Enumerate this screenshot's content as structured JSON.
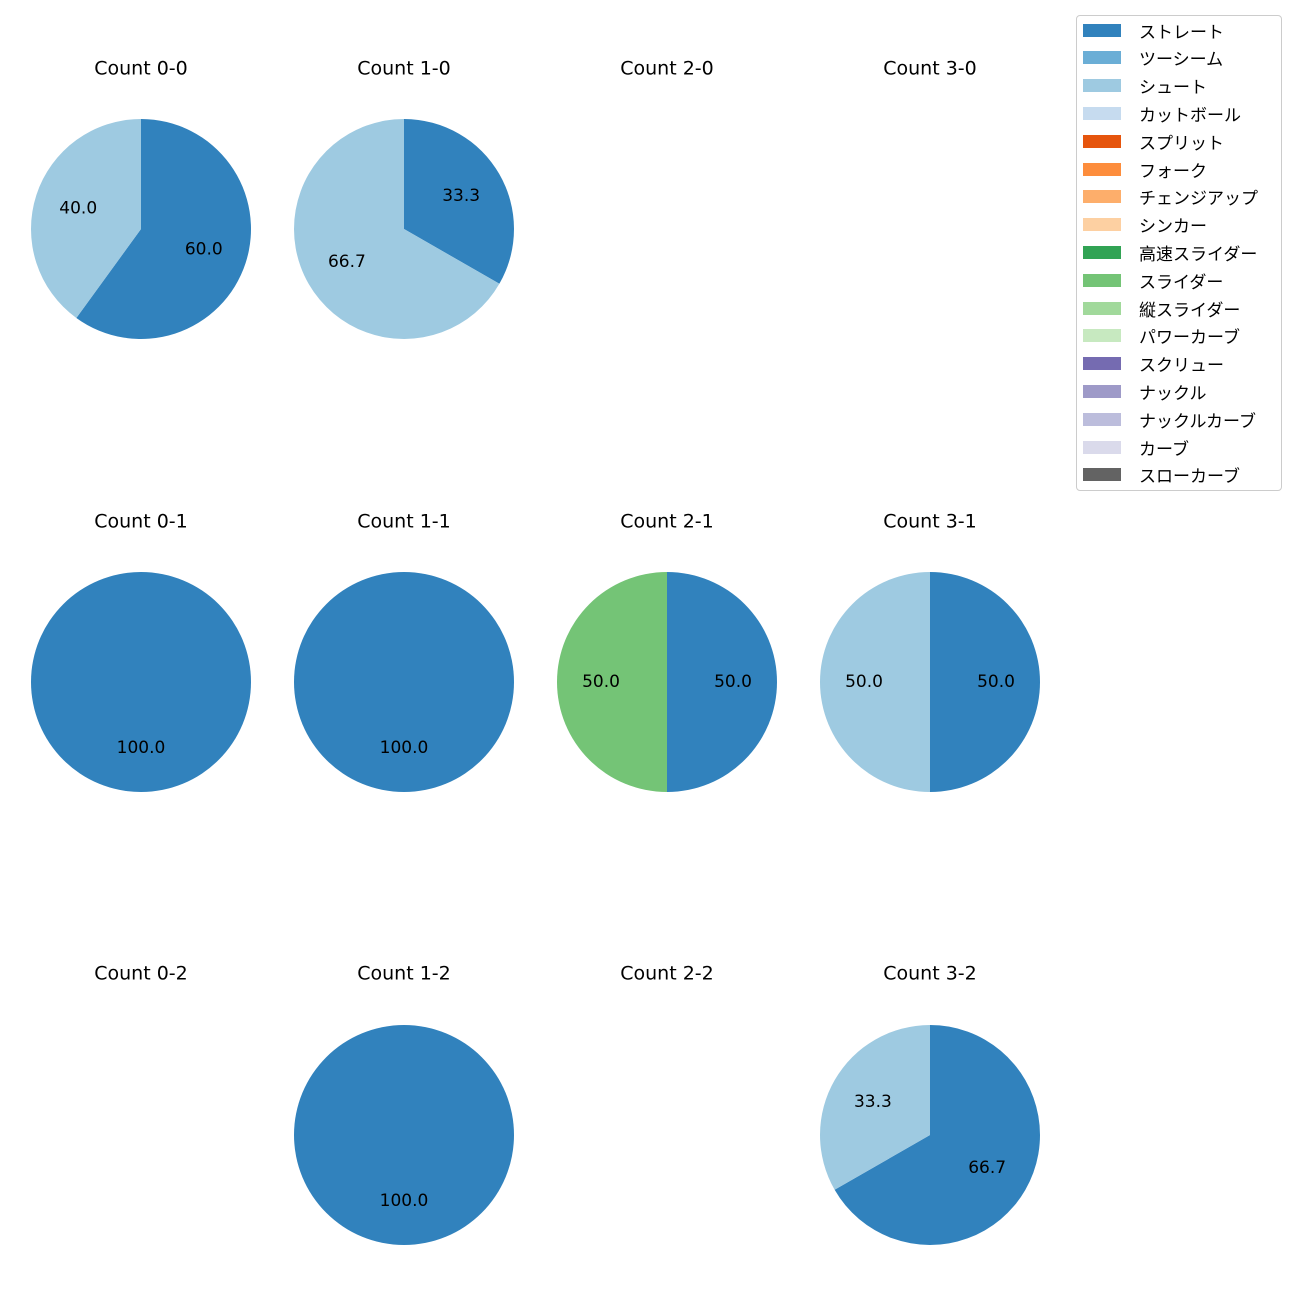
{
  "chart_data": {
    "type": "pie",
    "start_angle_deg": 90,
    "direction": "clockwise",
    "legend": {
      "placement": "top-right",
      "entries": [
        {
          "name": "ストレート",
          "color": "#3182bd"
        },
        {
          "name": "ツーシーム",
          "color": "#6baed6"
        },
        {
          "name": "シュート",
          "color": "#9ecae1"
        },
        {
          "name": "カットボール",
          "color": "#c6dbef"
        },
        {
          "name": "スプリット",
          "color": "#e6550d"
        },
        {
          "name": "フォーク",
          "color": "#fd8d3c"
        },
        {
          "name": "チェンジアップ",
          "color": "#fdae6b"
        },
        {
          "name": "シンカー",
          "color": "#fdd0a2"
        },
        {
          "name": "高速スライダー",
          "color": "#31a354"
        },
        {
          "name": "スライダー",
          "color": "#74c476"
        },
        {
          "name": "縦スライダー",
          "color": "#a1d99b"
        },
        {
          "name": "パワーカーブ",
          "color": "#c7e9c0"
        },
        {
          "name": "スクリュー",
          "color": "#756bb1"
        },
        {
          "name": "ナックル",
          "color": "#9e9ac8"
        },
        {
          "name": "ナックルカーブ",
          "color": "#bcbddc"
        },
        {
          "name": "カーブ",
          "color": "#dadaeb"
        },
        {
          "name": "スローカーブ",
          "color": "#636363"
        }
      ]
    },
    "charts": [
      {
        "title": "Count 0-0",
        "slices": [
          {
            "label": "ストレート",
            "value": 60.0,
            "text": "60.0"
          },
          {
            "label": "シュート",
            "value": 40.0,
            "text": "40.0"
          }
        ]
      },
      {
        "title": "Count 1-0",
        "slices": [
          {
            "label": "ストレート",
            "value": 33.3,
            "text": "33.3"
          },
          {
            "label": "シュート",
            "value": 66.7,
            "text": "66.7"
          }
        ]
      },
      {
        "title": "Count 2-0",
        "slices": []
      },
      {
        "title": "Count 3-0",
        "slices": []
      },
      {
        "title": "Count 0-1",
        "slices": [
          {
            "label": "ストレート",
            "value": 100.0,
            "text": "100.0"
          }
        ]
      },
      {
        "title": "Count 1-1",
        "slices": [
          {
            "label": "ストレート",
            "value": 100.0,
            "text": "100.0"
          }
        ]
      },
      {
        "title": "Count 2-1",
        "slices": [
          {
            "label": "ストレート",
            "value": 50.0,
            "text": "50.0"
          },
          {
            "label": "スライダー",
            "value": 50.0,
            "text": "50.0"
          }
        ]
      },
      {
        "title": "Count 3-1",
        "slices": [
          {
            "label": "ストレート",
            "value": 50.0,
            "text": "50.0"
          },
          {
            "label": "シュート",
            "value": 50.0,
            "text": "50.0"
          }
        ]
      },
      {
        "title": "Count 0-2",
        "slices": []
      },
      {
        "title": "Count 1-2",
        "slices": [
          {
            "label": "ストレート",
            "value": 100.0,
            "text": "100.0"
          }
        ]
      },
      {
        "title": "Count 2-2",
        "slices": []
      },
      {
        "title": "Count 3-2",
        "slices": [
          {
            "label": "ストレート",
            "value": 66.7,
            "text": "66.7"
          },
          {
            "label": "シュート",
            "value": 33.3,
            "text": "33.3"
          }
        ]
      }
    ]
  }
}
